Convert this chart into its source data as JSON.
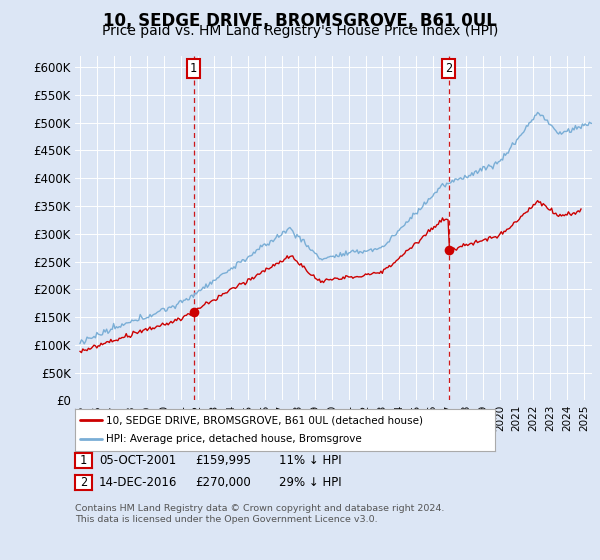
{
  "title": "10, SEDGE DRIVE, BROMSGROVE, B61 0UL",
  "subtitle": "Price paid vs. HM Land Registry's House Price Index (HPI)",
  "title_fontsize": 12,
  "subtitle_fontsize": 10,
  "background_color": "#dce6f5",
  "plot_bg_color": "#dce6f5",
  "ylabel_ticks": [
    "£0",
    "£50K",
    "£100K",
    "£150K",
    "£200K",
    "£250K",
    "£300K",
    "£350K",
    "£400K",
    "£450K",
    "£500K",
    "£550K",
    "£600K"
  ],
  "ylim": [
    0,
    620000
  ],
  "xlim_start": 1994.7,
  "xlim_end": 2025.5,
  "x_ticks": [
    1995,
    1996,
    1997,
    1998,
    1999,
    2000,
    2001,
    2002,
    2003,
    2004,
    2005,
    2006,
    2007,
    2008,
    2009,
    2010,
    2011,
    2012,
    2013,
    2014,
    2015,
    2016,
    2017,
    2018,
    2019,
    2020,
    2021,
    2022,
    2023,
    2024,
    2025
  ],
  "hpi_color": "#7aaed6",
  "price_color": "#cc0000",
  "marker_color": "#cc0000",
  "vline_color": "#cc0000",
  "point1_x": 2001.76,
  "point1_y": 159995,
  "point1_label": "1",
  "point2_x": 2016.95,
  "point2_y": 270000,
  "point2_label": "2",
  "legend_label1": "10, SEDGE DRIVE, BROMSGROVE, B61 0UL (detached house)",
  "legend_label2": "HPI: Average price, detached house, Bromsgrove",
  "footer1": "Contains HM Land Registry data © Crown copyright and database right 2024.",
  "footer2": "This data is licensed under the Open Government Licence v3.0.",
  "grid_color": "#ffffff",
  "box_color": "#cc0000",
  "ann1_date": "05-OCT-2001",
  "ann1_price": "£159,995",
  "ann1_pct": "11% ↓ HPI",
  "ann2_date": "14-DEC-2016",
  "ann2_price": "£270,000",
  "ann2_pct": "29% ↓ HPI"
}
